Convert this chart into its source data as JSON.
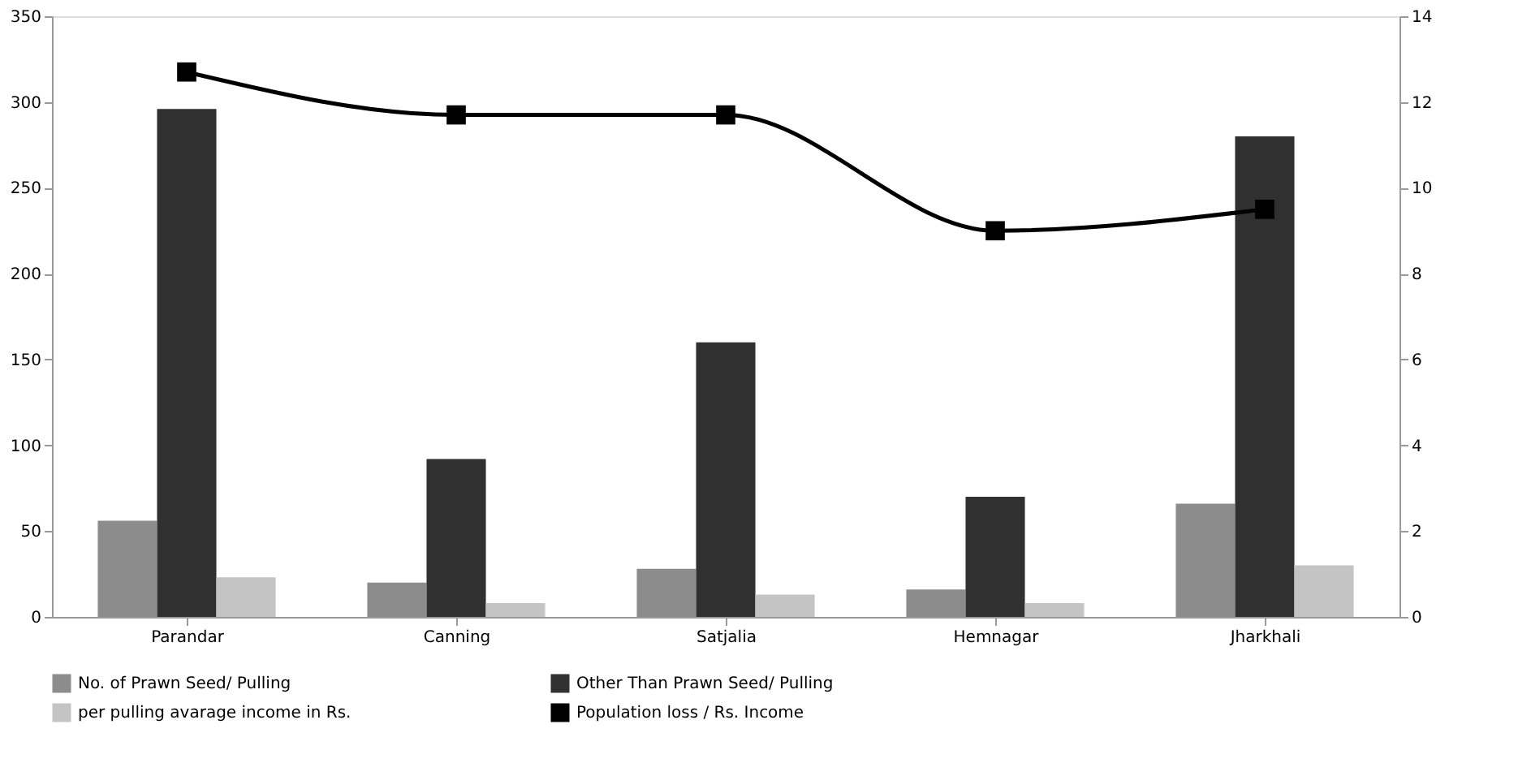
{
  "chart_data": {
    "type": "bar",
    "categories": [
      "Parandar",
      "Canning",
      "Satjalia",
      "Hemnagar",
      "Jharkhali"
    ],
    "series": [
      {
        "name": "No. of Prawn Seed/ Pulling",
        "color": "#8c8c8c",
        "values": [
          56,
          20,
          28,
          16,
          66
        ]
      },
      {
        "name": "Other Than Prawn Seed/ Pulling",
        "color": "#303030",
        "values": [
          296,
          92,
          160,
          70,
          280
        ]
      },
      {
        "name": "per pulling avarage income in Rs.",
        "color": "#c4c4c4",
        "values": [
          23,
          8,
          13,
          8,
          30
        ]
      },
      {
        "name": "Population loss / Rs. Income",
        "color": "#000000",
        "type": "line",
        "axis": "y2",
        "marker": "square",
        "values": [
          12.7,
          11.7,
          11.7,
          9.0,
          9.5
        ]
      }
    ],
    "ylim": [
      0,
      350
    ],
    "yticks": [
      0,
      50,
      100,
      150,
      200,
      250,
      300,
      350
    ],
    "y2lim": [
      0,
      14
    ],
    "y2ticks": [
      0,
      2,
      4,
      6,
      8,
      10,
      12,
      14
    ],
    "grid": false,
    "legend": "bottom"
  }
}
